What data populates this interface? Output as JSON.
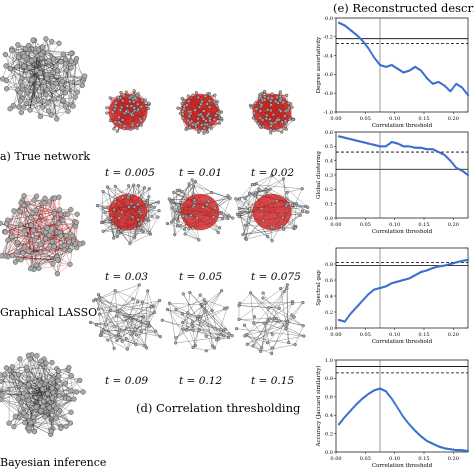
{
  "captions": {
    "a": "a) True network",
    "b": "Graphical LASSO",
    "c": "Bayesian inference",
    "d": "(d) Correlation thresholding",
    "e": "(e) Reconstructed descriptors"
  },
  "thresholds": [
    "t = 0.005",
    "t = 0.01",
    "t = 0.02",
    "t = 0.03",
    "t = 0.05",
    "t = 0.075",
    "t = 0.09",
    "t = 0.12",
    "t = 0.15"
  ],
  "colors": {
    "node": "#a9a9a9",
    "node_highlight": "#cc1f1f",
    "series": "#3a6fd0",
    "reference_line": "#000000"
  },
  "chart_data": [
    {
      "type": "scatter",
      "ylabel": "Degree assortativity",
      "xlabel": "Correlation threshold",
      "xlim": [
        0,
        0.225
      ],
      "ylim": [
        -1.0,
        0.0
      ],
      "xticks": [
        "0.00",
        "0.05",
        "0.10",
        "0.15",
        "0.20"
      ],
      "yticks": [
        "0.0",
        "-0.2",
        "-0.4",
        "-0.6",
        "-0.8",
        "-1.0"
      ],
      "ref_solid": -0.22,
      "ref_dashed": -0.27,
      "vline": 0.075,
      "series": [
        {
          "x": [
            0.005,
            0.015,
            0.025,
            0.035,
            0.045,
            0.055,
            0.065,
            0.075,
            0.085,
            0.095,
            0.105,
            0.115,
            0.125,
            0.135,
            0.145,
            0.155,
            0.165,
            0.175,
            0.185,
            0.195,
            0.205,
            0.215,
            0.225
          ],
          "y": [
            -0.05,
            -0.08,
            -0.13,
            -0.18,
            -0.24,
            -0.32,
            -0.42,
            -0.5,
            -0.52,
            -0.5,
            -0.54,
            -0.58,
            -0.56,
            -0.52,
            -0.56,
            -0.64,
            -0.7,
            -0.68,
            -0.72,
            -0.78,
            -0.7,
            -0.74,
            -0.82
          ]
        }
      ]
    },
    {
      "type": "scatter",
      "ylabel": "Global clustering",
      "xlabel": "Correlation threshold",
      "xlim": [
        0,
        0.225
      ],
      "ylim": [
        0.0,
        0.6
      ],
      "xticks": [
        "0.00",
        "0.05",
        "0.10",
        "0.15",
        "0.20"
      ],
      "yticks": [
        "0.0",
        "0.1",
        "0.2",
        "0.3",
        "0.4",
        "0.5",
        "0.6"
      ],
      "ref_solid": 0.34,
      "ref_dashed": 0.46,
      "vline": 0.075,
      "series": [
        {
          "x": [
            0.005,
            0.015,
            0.025,
            0.035,
            0.045,
            0.055,
            0.065,
            0.075,
            0.085,
            0.095,
            0.105,
            0.115,
            0.125,
            0.135,
            0.145,
            0.155,
            0.165,
            0.175,
            0.185,
            0.195,
            0.205,
            0.215,
            0.225
          ],
          "y": [
            0.57,
            0.56,
            0.55,
            0.54,
            0.53,
            0.52,
            0.51,
            0.5,
            0.5,
            0.53,
            0.52,
            0.5,
            0.5,
            0.49,
            0.49,
            0.48,
            0.48,
            0.46,
            0.44,
            0.4,
            0.35,
            0.33,
            0.3
          ]
        }
      ]
    },
    {
      "type": "scatter",
      "ylabel": "Spectral gap",
      "xlabel": "Correlation threshold",
      "xlim": [
        0,
        0.225
      ],
      "ylim": [
        0.0,
        1.0
      ],
      "xticks": [
        "0.00",
        "0.05",
        "0.10",
        "0.15",
        "0.20"
      ],
      "yticks": [
        "0.0",
        "0.2",
        "0.4",
        "0.6",
        "0.8"
      ],
      "ref_solid": 0.78,
      "ref_dashed": 0.82,
      "vline": 0.075,
      "series": [
        {
          "x": [
            0.005,
            0.015,
            0.025,
            0.035,
            0.045,
            0.055,
            0.065,
            0.075,
            0.085,
            0.095,
            0.105,
            0.115,
            0.125,
            0.135,
            0.145,
            0.155,
            0.165,
            0.175,
            0.185,
            0.195,
            0.205,
            0.215,
            0.225
          ],
          "y": [
            0.1,
            0.08,
            0.18,
            0.26,
            0.34,
            0.42,
            0.48,
            0.5,
            0.52,
            0.56,
            0.58,
            0.6,
            0.62,
            0.66,
            0.7,
            0.72,
            0.75,
            0.77,
            0.78,
            0.8,
            0.82,
            0.84,
            0.85
          ]
        }
      ]
    },
    {
      "type": "scatter",
      "ylabel": "Accuracy (Jaccard similarity)",
      "xlabel": "Correlation threshold",
      "xlim": [
        0,
        0.225
      ],
      "ylim": [
        0.0,
        1.0
      ],
      "xticks": [
        "0.00",
        "0.05",
        "0.10",
        "0.15",
        "0.20"
      ],
      "yticks": [
        "0.0",
        "0.2",
        "0.4",
        "0.6",
        "0.8",
        "1.0"
      ],
      "ref_solid": 0.93,
      "ref_dashed": 0.86,
      "vline": 0.075,
      "series": [
        {
          "x": [
            0.005,
            0.015,
            0.025,
            0.035,
            0.045,
            0.055,
            0.065,
            0.075,
            0.085,
            0.095,
            0.105,
            0.115,
            0.125,
            0.135,
            0.145,
            0.155,
            0.165,
            0.175,
            0.185,
            0.195,
            0.205,
            0.215,
            0.225
          ],
          "y": [
            0.3,
            0.38,
            0.45,
            0.52,
            0.58,
            0.63,
            0.67,
            0.69,
            0.66,
            0.58,
            0.48,
            0.38,
            0.3,
            0.23,
            0.17,
            0.12,
            0.09,
            0.06,
            0.04,
            0.03,
            0.02,
            0.02,
            0.01
          ]
        }
      ]
    }
  ]
}
